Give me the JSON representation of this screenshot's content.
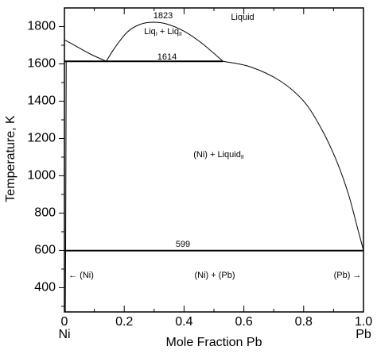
{
  "chart_data": {
    "type": "line",
    "xlabel": "Mole Fraction Pb",
    "ylabel": "Temperature, K",
    "x_end_labels": [
      "Ni",
      "Pb"
    ],
    "xlim": [
      0,
      1
    ],
    "ylim": [
      270,
      1900
    ],
    "xticks": [
      0,
      0.2,
      0.4,
      0.6,
      0.8,
      {
        "value": 1,
        "label": "1.0"
      }
    ],
    "yticks": [
      400,
      600,
      800,
      1000,
      1200,
      1400,
      1600,
      1800
    ],
    "xminorticks": [
      0.1,
      0.3,
      0.5,
      0.7,
      0.9
    ],
    "yminorticks": [
      300,
      500,
      700,
      900,
      1100,
      1300,
      1500,
      1700
    ],
    "color": "#000000",
    "series": [
      {
        "x": [
          0,
          0.02,
          0.05,
          0.09,
          0.14
        ],
        "values": [
          1728,
          1712,
          1685,
          1650,
          1614
        ],
        "linewidth": 1
      },
      {
        "x": [
          0.14,
          0.17,
          0.21,
          0.25,
          0.29,
          0.34,
          0.4,
          0.46,
          0.53
        ],
        "values": [
          1614,
          1690,
          1770,
          1810,
          1823,
          1815,
          1775,
          1710,
          1614
        ],
        "linewidth": 1
      },
      {
        "x": [
          0.53,
          0.62,
          0.72,
          0.8,
          0.86,
          0.91,
          0.95,
          0.98,
          1.0
        ],
        "values": [
          1614,
          1585,
          1510,
          1400,
          1250,
          1080,
          900,
          720,
          600
        ],
        "linewidth": 1
      },
      {
        "x": [
          0.006,
          0.004,
          0.003
        ],
        "values": [
          1614,
          599,
          270
        ],
        "linewidth": 1
      },
      {
        "x": [
          0,
          0.53
        ],
        "values": [
          1614,
          1614
        ],
        "linewidth": 2
      },
      {
        "x": [
          0,
          1.0
        ],
        "values": [
          599,
          599
        ],
        "linewidth": 2
      }
    ],
    "annotations": [
      {
        "parts": [
          {
            "text": "1823"
          }
        ]
      },
      {
        "parts": [
          {
            "text": "Liquid"
          }
        ]
      },
      {
        "parts": [
          {
            "text": "Liq"
          },
          {
            "text": "I",
            "sub": true
          },
          {
            "text": " + Liq"
          },
          {
            "text": "II",
            "sub": true
          }
        ]
      },
      {
        "parts": [
          {
            "text": "1614"
          }
        ]
      },
      {
        "parts": [
          {
            "text": "(Ni) + Liquid"
          },
          {
            "text": "II",
            "sub": true
          }
        ]
      },
      {
        "parts": [
          {
            "text": "599"
          }
        ]
      },
      {
        "parts": [
          {
            "text": "← (Ni)"
          }
        ]
      },
      {
        "parts": [
          {
            "text": "(Ni) + (Pb)"
          }
        ]
      },
      {
        "parts": [
          {
            "text": "(Pb) →"
          }
        ]
      }
    ]
  }
}
